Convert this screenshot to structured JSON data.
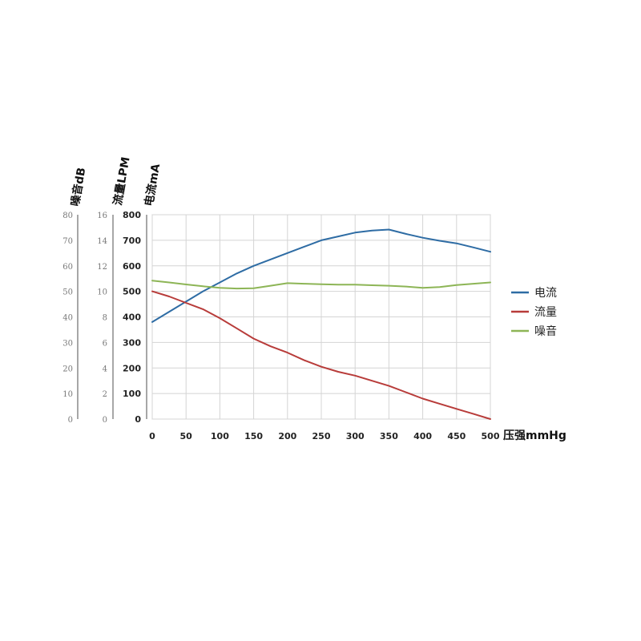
{
  "chart_data": {
    "type": "line",
    "xlabel": "压强mmHg",
    "x": [
      0,
      25,
      50,
      75,
      100,
      125,
      150,
      175,
      200,
      225,
      250,
      275,
      300,
      325,
      350,
      375,
      400,
      425,
      450,
      475,
      500
    ],
    "xticks": [
      0,
      50,
      100,
      150,
      200,
      250,
      300,
      350,
      400,
      450,
      500
    ],
    "xlim": [
      0,
      500
    ],
    "y_axes": [
      {
        "title": "噪音dB",
        "ticks": [
          "80",
          "70",
          "60",
          "50",
          "40",
          "30",
          "20",
          "10",
          "0"
        ],
        "ylim": [
          0,
          80
        ]
      },
      {
        "title": "流量LPM",
        "ticks": [
          "16",
          "14",
          "12",
          "10",
          "8",
          "6",
          "4",
          "2",
          "0"
        ],
        "ylim": [
          0,
          16
        ]
      },
      {
        "title": "电流mA",
        "ticks": [
          "800",
          "700",
          "600",
          "500",
          "400",
          "300",
          "200",
          "100",
          "0"
        ],
        "ylim": [
          0,
          800
        ]
      }
    ],
    "series": [
      {
        "name": "电流",
        "color": "#2e6ca4",
        "values": [
          380,
          420,
          460,
          500,
          535,
          570,
          600,
          625,
          650,
          675,
          700,
          715,
          730,
          738,
          742,
          725,
          710,
          698,
          688,
          672,
          655
        ]
      },
      {
        "name": "流量",
        "color": "#b83c3a",
        "values": [
          500,
          480,
          455,
          430,
          395,
          355,
          315,
          285,
          260,
          230,
          205,
          185,
          170,
          150,
          130,
          105,
          80,
          60,
          40,
          20,
          0
        ]
      },
      {
        "name": "噪音",
        "color": "#8db556",
        "values": [
          542,
          535,
          527,
          520,
          514,
          511,
          512,
          522,
          532,
          530,
          528,
          526,
          526,
          524,
          522,
          519,
          514,
          517,
          525,
          530,
          535
        ]
      }
    ],
    "legend_position": "right",
    "grid": true
  }
}
